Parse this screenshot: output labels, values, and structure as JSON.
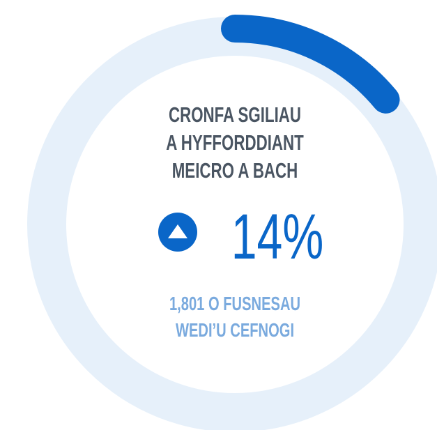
{
  "chart_data": {
    "type": "gauge",
    "title": [
      "CRONFA SGILIAU",
      "A HYFFORDDIANT",
      "MEICRO A BACH"
    ],
    "values": [
      14
    ],
    "value_labels": [
      "14%"
    ],
    "subtitle": [
      "1,801 O FUSNESAU",
      "WEDI’U CEFNOGI"
    ],
    "ylim": [
      0,
      100
    ],
    "color": "#0a66c8",
    "track_color": "#e6f0fa"
  }
}
